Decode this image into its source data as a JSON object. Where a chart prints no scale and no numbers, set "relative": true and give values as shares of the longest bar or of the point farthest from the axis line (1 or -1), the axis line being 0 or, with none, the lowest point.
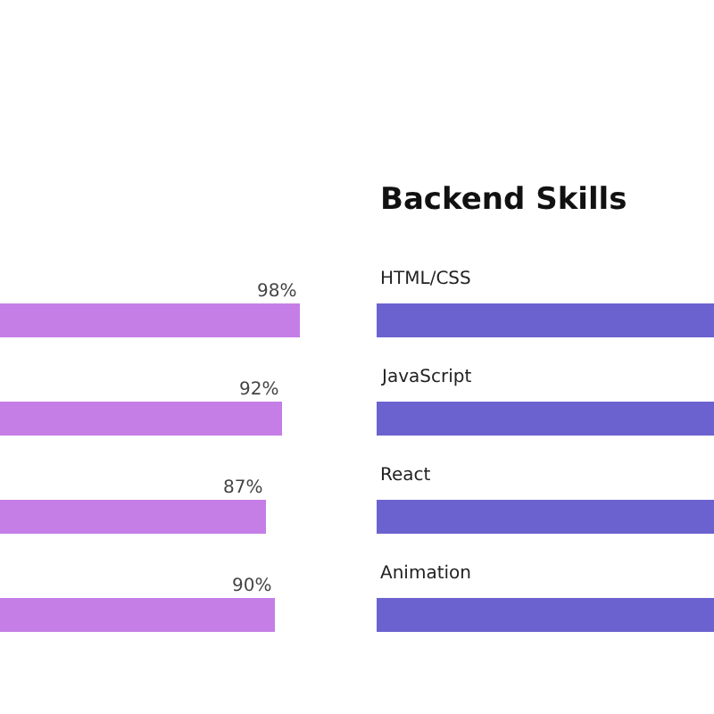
{
  "chart_data": [
    {
      "type": "bar",
      "orientation": "horizontal",
      "categories": [
        null,
        null,
        null,
        null
      ],
      "values": [
        98,
        92,
        87,
        90
      ],
      "color": "#c57ee6",
      "value_labels": [
        "98%",
        "92%",
        "87%",
        "90%"
      ],
      "tick_labels": false
    },
    {
      "type": "bar",
      "orientation": "horizontal",
      "relative": true,
      "title": "Backend Skills",
      "categories": [
        "HTML/CSS",
        "JavaScript",
        "React",
        "Animation"
      ],
      "values": [
        1,
        1,
        1,
        1
      ],
      "color": "#6b62d0"
    }
  ]
}
